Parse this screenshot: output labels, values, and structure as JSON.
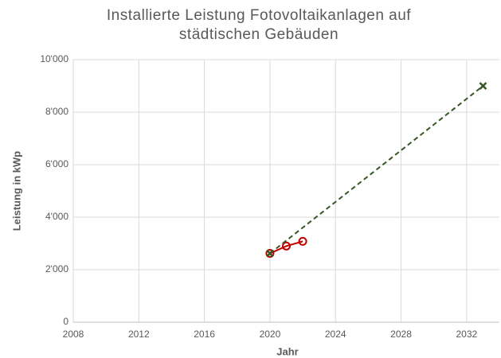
{
  "chart_data": {
    "type": "line",
    "title": "Installierte Leistung Fotovoltaikanlagen auf städtischen Gebäuden",
    "x_label": "Jahr",
    "y_label": "Leistung in kWp",
    "xlim": [
      2008,
      2034
    ],
    "xticks": [
      2008,
      2012,
      2016,
      2020,
      2024,
      2028,
      2032
    ],
    "ylim": [
      0,
      10000
    ],
    "yticks": [
      0,
      {
        "value": 2000,
        "label": "2'000"
      },
      {
        "value": 4000,
        "label": "4'000"
      },
      {
        "value": 6000,
        "label": "6'000"
      },
      {
        "value": 8000,
        "label": "8'000"
      },
      {
        "value": 10000,
        "label": "10'000"
      }
    ],
    "grid": true,
    "series": [
      {
        "color": "#c00000",
        "marker": "circle",
        "dashed": false,
        "x": [
          2020,
          2021,
          2022
        ],
        "values": [
          2620,
          2900,
          3080
        ]
      },
      {
        "color": "#375623",
        "marker": "x",
        "dashed": true,
        "x": [
          2020,
          2033
        ],
        "values": [
          2620,
          9000
        ]
      }
    ]
  }
}
